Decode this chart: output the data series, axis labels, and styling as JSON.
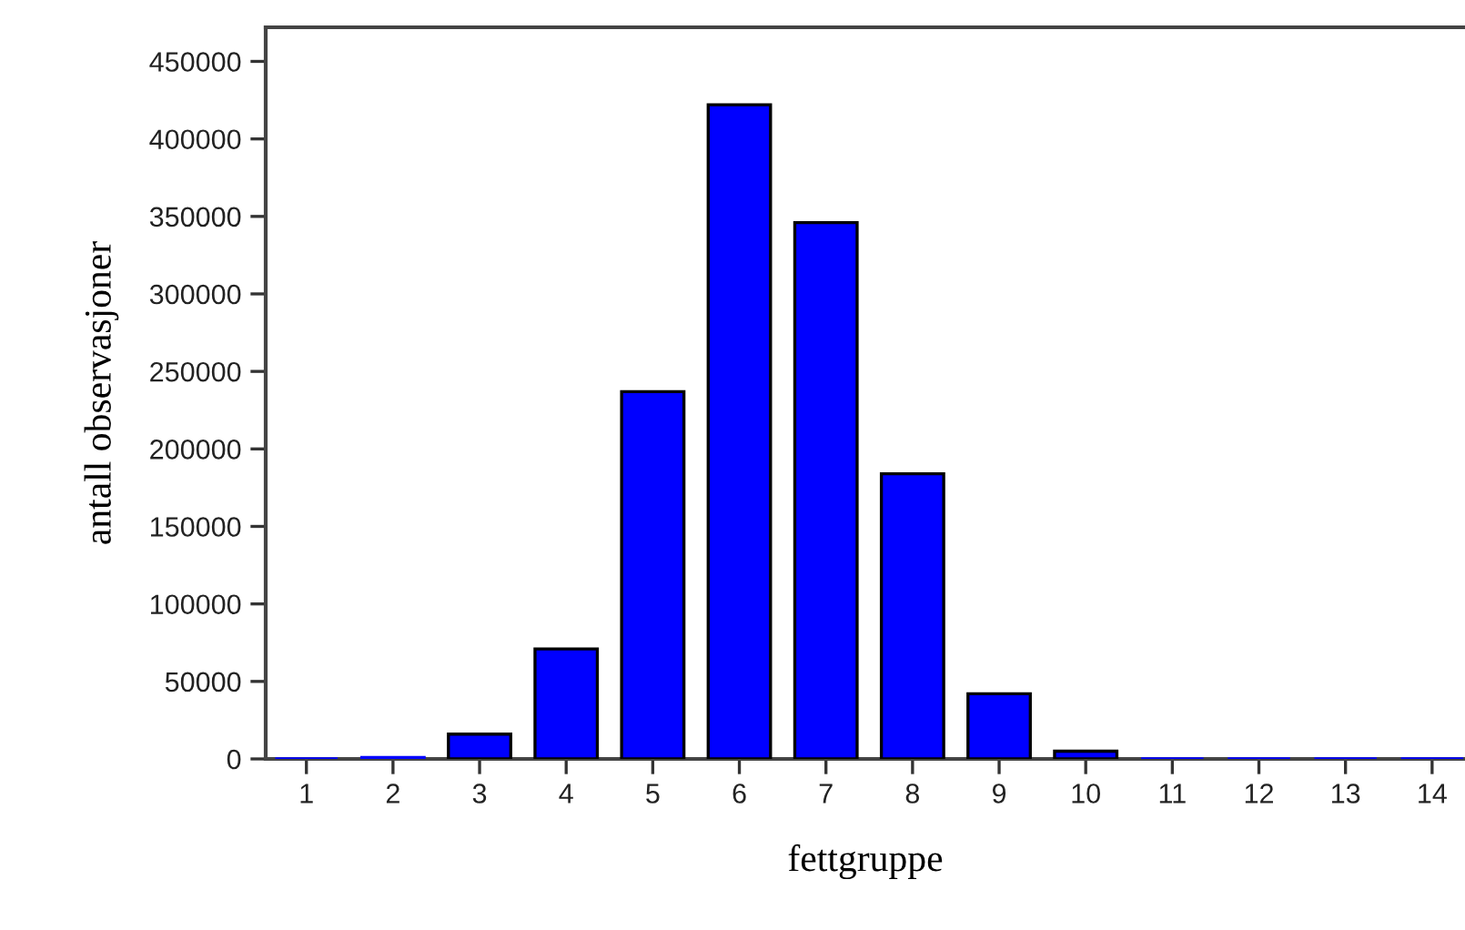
{
  "chart_data": {
    "type": "bar",
    "xlabel": "fettgruppe",
    "ylabel": "antall observasjoner",
    "categories": [
      "1",
      "2",
      "3",
      "4",
      "5",
      "6",
      "7",
      "8",
      "9",
      "10",
      "11",
      "12",
      "13",
      "14"
    ],
    "values": [
      0,
      1000,
      16000,
      71000,
      237000,
      422000,
      346000,
      184000,
      42000,
      5000,
      0,
      0,
      0,
      0
    ],
    "color": "#0000ff",
    "ylim": [
      0,
      472000
    ],
    "yticks": [
      0,
      50000,
      100000,
      150000,
      200000,
      250000,
      300000,
      350000,
      400000,
      450000
    ],
    "grid": false
  }
}
